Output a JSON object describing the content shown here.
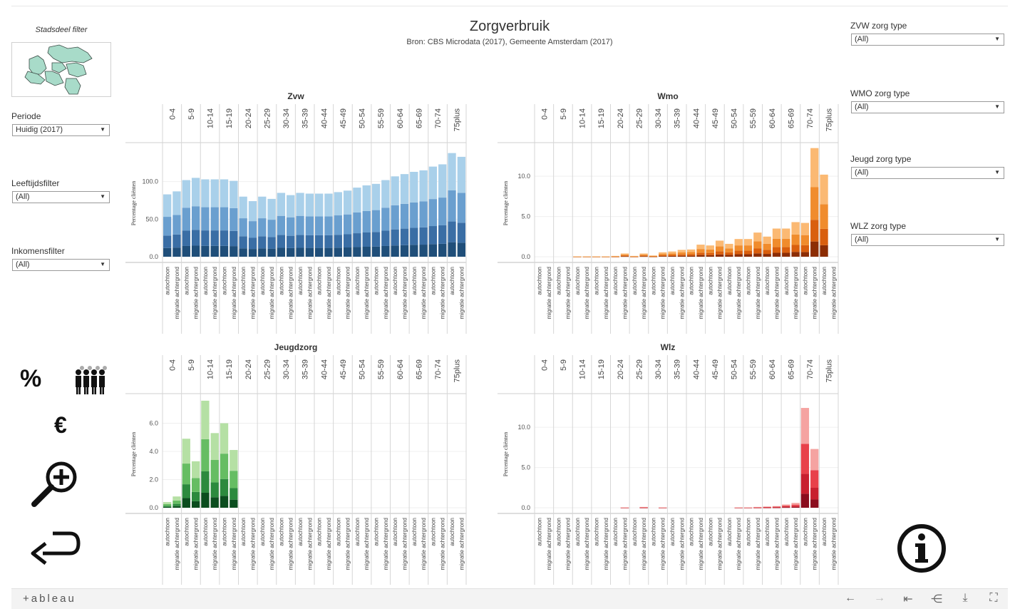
{
  "dashboard": {
    "title": "Zorgverbruik",
    "subtitle": "Bron: CBS Microdata (2017), Gemeente Amsterdam (2017)"
  },
  "left_filters": {
    "stadsdeel_title": "Stadsdeel filter",
    "periode_label": "Periode",
    "periode_value": "Huidig (2017)",
    "leeftijd_label": "Leeftijdsfilter",
    "leeftijd_value": "(All)",
    "inkomen_label": "Inkomensfilter",
    "inkomen_value": "(All)"
  },
  "right_filters": [
    {
      "label": "ZVW zorg type",
      "value": "(All)"
    },
    {
      "label": "WMO zorg type",
      "value": "(All)"
    },
    {
      "label": "Jeugd zorg type",
      "value": "(All)"
    },
    {
      "label": "WLZ zorg type",
      "value": "(All)"
    }
  ],
  "icons": {
    "percent_symbol": "%",
    "euro_symbol": "€"
  },
  "footer": {
    "logo_text": "+ableau",
    "nav_icons": [
      "undo-icon",
      "redo-icon",
      "revert-icon",
      "share-icon",
      "download-icon",
      "fullscreen-icon"
    ]
  },
  "colors": {
    "zvw": [
      "#1f4e79",
      "#3a6ea5",
      "#6a9fcf",
      "#a9d0ea"
    ],
    "wmo": [
      "#8c2d04",
      "#d95f0e",
      "#f08c2d",
      "#fbb973"
    ],
    "jeugd": [
      "#0b4d1e",
      "#2c8a3e",
      "#66bd63",
      "#b5e0a4"
    ],
    "wlz": [
      "#8b0d1e",
      "#c8202f",
      "#e8414a",
      "#f5a3a1"
    ]
  },
  "chart_data": [
    {
      "type": "bar",
      "title": "Zvw",
      "ylabel": "Percentage cliënten",
      "ylim": [
        0,
        150
      ],
      "yticks": [
        "0.0",
        "50.0",
        "100.0"
      ],
      "yticks_values": [
        0,
        50,
        100
      ],
      "age_groups": [
        "0-4",
        "5-9",
        "10-14",
        "15-19",
        "20-24",
        "25-29",
        "30-34",
        "35-39",
        "40-44",
        "45-49",
        "50-54",
        "55-59",
        "60-64",
        "65-69",
        "70-74",
        "75plus"
      ],
      "categories": [
        "autochtoon",
        "migratie achtergrond"
      ],
      "totals": [
        83,
        87,
        102,
        105,
        103,
        103,
        103,
        101,
        80,
        74,
        80,
        77,
        85,
        82,
        85,
        84,
        84,
        84,
        86,
        88,
        92,
        95,
        97,
        102,
        107,
        110,
        113,
        115,
        120,
        123,
        138,
        133
      ]
    },
    {
      "type": "bar",
      "title": "Wmo",
      "ylabel": "Percentage cliënten",
      "ylim": [
        0,
        14
      ],
      "yticks": [
        "0.0",
        "5.0",
        "10.0"
      ],
      "yticks_values": [
        0,
        5,
        10
      ],
      "age_groups": [
        "0-4",
        "5-9",
        "10-14",
        "15-19",
        "20-24",
        "25-29",
        "30-34",
        "35-39",
        "40-44",
        "45-49",
        "50-54",
        "55-59",
        "60-64",
        "65-69",
        "70-74",
        "75plus"
      ],
      "categories": [
        "autochtoon",
        "migratie achtergrond"
      ],
      "totals": [
        0,
        0,
        0,
        0,
        0.05,
        0.05,
        0.05,
        0.05,
        0.1,
        0.4,
        0.1,
        0.4,
        0.15,
        0.55,
        0.65,
        0.85,
        0.9,
        1.5,
        1.4,
        2.0,
        1.6,
        2.2,
        2.2,
        3.0,
        2.5,
        3.5,
        3.5,
        4.3,
        4.2,
        13.5,
        10.2,
        0
      ]
    },
    {
      "type": "bar",
      "title": "Jeugdzorg",
      "ylabel": "Percentage cliënten",
      "ylim": [
        0,
        8
      ],
      "yticks": [
        "0.0",
        "2.0",
        "4.0",
        "6.0"
      ],
      "yticks_values": [
        0,
        2,
        4,
        6
      ],
      "age_groups": [
        "0-4",
        "5-9",
        "10-14",
        "15-19",
        "20-24",
        "25-29",
        "30-34",
        "35-39",
        "40-44",
        "45-49",
        "50-54",
        "55-59",
        "60-64",
        "65-69",
        "70-74",
        "75plus"
      ],
      "categories": [
        "autochtoon",
        "migratie achtergrond"
      ],
      "totals": [
        0.4,
        0.8,
        4.9,
        3.3,
        7.6,
        5.3,
        6.0,
        4.1,
        0,
        0,
        0,
        0,
        0,
        0,
        0,
        0,
        0,
        0,
        0,
        0,
        0,
        0,
        0,
        0,
        0,
        0,
        0,
        0,
        0,
        0,
        0,
        0
      ]
    },
    {
      "type": "bar",
      "title": "Wlz",
      "ylabel": "Percentage cliënten",
      "ylim": [
        0,
        14
      ],
      "yticks": [
        "0.0",
        "5.0",
        "10.0"
      ],
      "yticks_values": [
        0,
        5,
        10
      ],
      "age_groups": [
        "0-4",
        "5-9",
        "10-14",
        "15-19",
        "20-24",
        "25-29",
        "30-34",
        "35-39",
        "40-44",
        "45-49",
        "50-54",
        "55-59",
        "60-64",
        "65-69",
        "70-74",
        "75plus"
      ],
      "categories": [
        "autochtoon",
        "migratie achtergrond"
      ],
      "totals": [
        0,
        0,
        0,
        0,
        0,
        0,
        0,
        0,
        0,
        0.05,
        0,
        0.1,
        0,
        0.05,
        0,
        0,
        0,
        0,
        0,
        0,
        0,
        0.05,
        0.05,
        0.1,
        0.15,
        0.2,
        0.4,
        0.6,
        12.4,
        7.3,
        0,
        0
      ]
    }
  ]
}
